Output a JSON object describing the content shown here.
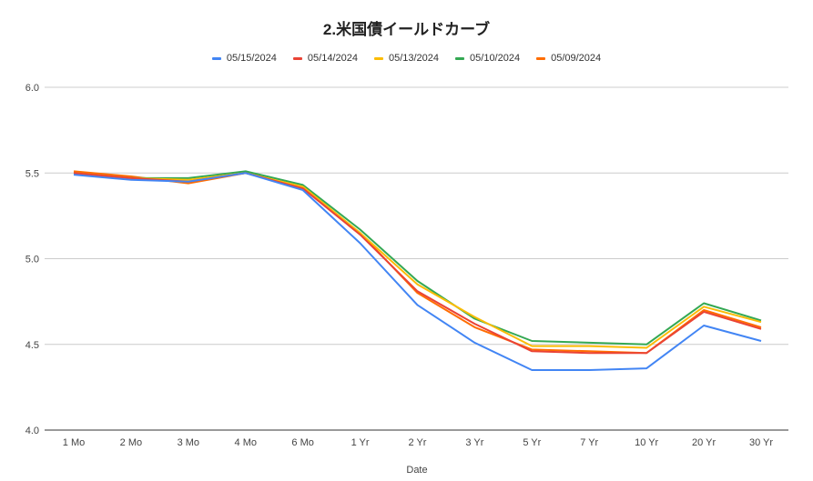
{
  "chart_data": {
    "type": "line",
    "title": "2.米国債イールドカーブ",
    "xlabel": "Date",
    "ylabel": "",
    "ylim": [
      4.0,
      6.0
    ],
    "yticks": [
      "4.0",
      "4.5",
      "5.0",
      "5.5",
      "6.0"
    ],
    "grid": true,
    "legend_position": "top",
    "categories": [
      "1 Mo",
      "2 Mo",
      "3 Mo",
      "4 Mo",
      "6 Mo",
      "1 Yr",
      "2 Yr",
      "3 Yr",
      "5 Yr",
      "7 Yr",
      "10 Yr",
      "20 Yr",
      "30 Yr"
    ],
    "series": [
      {
        "name": "05/15/2024",
        "color": "#4285f4",
        "values": [
          5.49,
          5.46,
          5.45,
          5.5,
          5.4,
          5.09,
          4.73,
          4.51,
          4.35,
          4.35,
          4.36,
          4.61,
          4.52
        ]
      },
      {
        "name": "05/14/2024",
        "color": "#ea4335",
        "values": [
          5.5,
          5.47,
          5.45,
          5.5,
          5.41,
          5.14,
          4.81,
          4.62,
          4.46,
          4.45,
          4.45,
          4.69,
          4.59
        ]
      },
      {
        "name": "05/13/2024",
        "color": "#fbbc04",
        "values": [
          5.5,
          5.47,
          5.46,
          5.5,
          5.42,
          5.15,
          4.85,
          4.66,
          4.49,
          4.49,
          4.48,
          4.72,
          4.63
        ]
      },
      {
        "name": "05/10/2024",
        "color": "#34a853",
        "values": [
          5.5,
          5.47,
          5.47,
          5.51,
          5.43,
          5.17,
          4.87,
          4.65,
          4.52,
          4.51,
          4.5,
          4.74,
          4.64
        ]
      },
      {
        "name": "05/09/2024",
        "color": "#ff6d01",
        "values": [
          5.51,
          5.48,
          5.44,
          5.5,
          5.41,
          5.15,
          4.8,
          4.6,
          4.47,
          4.46,
          4.45,
          4.7,
          4.6
        ]
      }
    ]
  }
}
